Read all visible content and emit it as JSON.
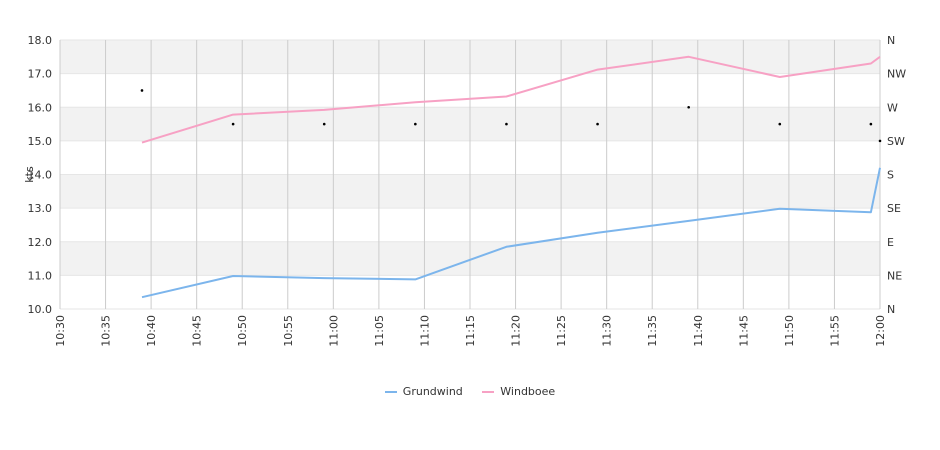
{
  "chart_data": {
    "type": "line",
    "ylabel": "kts",
    "ylim": [
      10,
      18
    ],
    "y_ticks": [
      "10.0",
      "11.0",
      "12.0",
      "13.0",
      "14.0",
      "15.0",
      "16.0",
      "17.0",
      "18.0"
    ],
    "right_axis": {
      "ticks": [
        "N",
        "NE",
        "E",
        "SE",
        "S",
        "SW",
        "W",
        "NW",
        "N"
      ]
    },
    "x_ticks": [
      "10:30",
      "10:35",
      "10:40",
      "10:45",
      "10:50",
      "10:55",
      "11:00",
      "11:05",
      "11:10",
      "11:15",
      "11:20",
      "11:25",
      "11:30",
      "11:35",
      "11:40",
      "11:45",
      "11:50",
      "11:55",
      "12:00"
    ],
    "grid": true,
    "legend_position": "bottom",
    "series": [
      {
        "name": "Grundwind",
        "color": "#7cb5ec",
        "points": [
          [
            "10:39",
            10.35
          ],
          [
            "10:49",
            10.98
          ],
          [
            "10:59",
            10.92
          ],
          [
            "11:09",
            10.88
          ],
          [
            "11:19",
            11.85
          ],
          [
            "11:29",
            12.27
          ],
          [
            "11:39",
            12.62
          ],
          [
            "11:49",
            12.98
          ],
          [
            "11:59",
            12.88
          ],
          [
            "12:00",
            14.2
          ]
        ]
      },
      {
        "name": "Windboee",
        "color": "#f7a1c4",
        "points": [
          [
            "10:39",
            14.95
          ],
          [
            "10:49",
            15.78
          ],
          [
            "10:59",
            15.92
          ],
          [
            "11:09",
            16.15
          ],
          [
            "11:19",
            16.32
          ],
          [
            "11:29",
            17.12
          ],
          [
            "11:39",
            17.5
          ],
          [
            "11:49",
            16.9
          ],
          [
            "11:59",
            17.3
          ],
          [
            "12:00",
            17.5
          ]
        ]
      }
    ],
    "direction_markers": [
      [
        "10:39",
        16.5
      ],
      [
        "10:49",
        15.5
      ],
      [
        "10:59",
        15.5
      ],
      [
        "11:09",
        15.5
      ],
      [
        "11:19",
        15.5
      ],
      [
        "11:29",
        15.5
      ],
      [
        "11:39",
        16.0
      ],
      [
        "11:49",
        15.5
      ],
      [
        "11:59",
        15.5
      ],
      [
        "12:00",
        15.0
      ]
    ]
  }
}
